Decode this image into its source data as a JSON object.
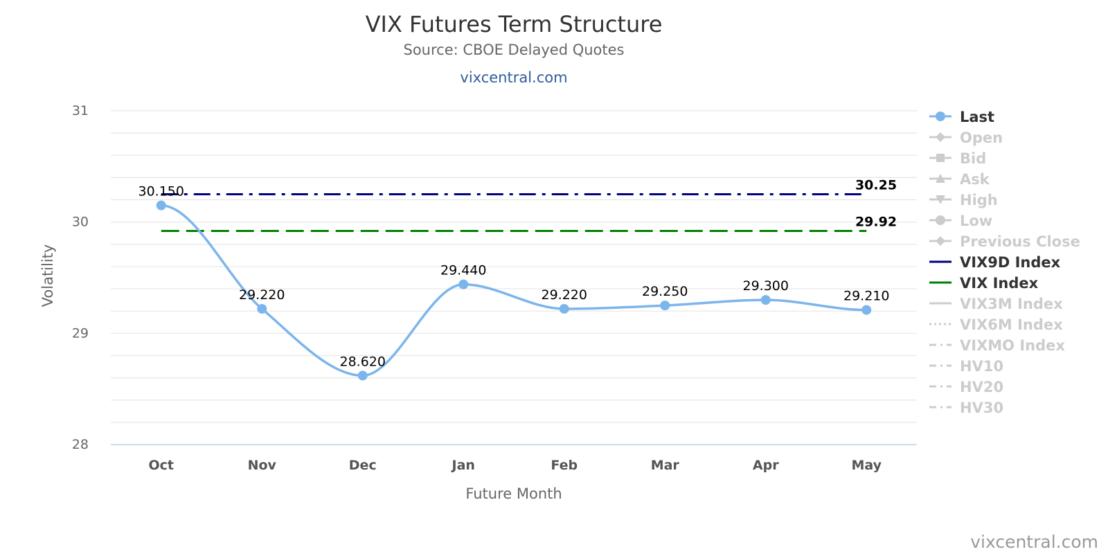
{
  "chart_data": {
    "type": "line",
    "title": "VIX Futures Term Structure",
    "subtitle": "Source: CBOE Delayed Quotes",
    "link_text": "vixcentral.com",
    "credit": "vixcentral.com",
    "xlabel": "Future Month",
    "ylabel": "Volatility",
    "ylim": [
      28,
      31
    ],
    "y_ticks": [
      28,
      29,
      30,
      31
    ],
    "y_minor_step": 0.2,
    "grid": true,
    "legend_position": "right",
    "categories": [
      "Oct",
      "Nov",
      "Dec",
      "Jan",
      "Feb",
      "Mar",
      "Apr",
      "May"
    ],
    "series": [
      {
        "name": "Last",
        "values": [
          30.15,
          29.22,
          28.62,
          29.44,
          29.22,
          29.25,
          29.3,
          29.21
        ],
        "labels": [
          "30.150",
          "29.220",
          "28.620",
          "29.440",
          "29.220",
          "29.250",
          "29.300",
          "29.210"
        ],
        "color": "#7cb5ec",
        "style": "smooth-line-with-markers"
      }
    ],
    "reference_lines": [
      {
        "name": "VIX9D Index",
        "value": 30.25,
        "label": "30.25",
        "color": "#000080",
        "style": "dash-dot"
      },
      {
        "name": "VIX Index",
        "value": 29.92,
        "label": "29.92",
        "color": "#008000",
        "style": "dash"
      }
    ],
    "legend": [
      {
        "name": "Last",
        "active": true,
        "color": "#7cb5ec",
        "symbol": "circle",
        "line": "solid"
      },
      {
        "name": "Open",
        "active": false,
        "color": "#cccccc",
        "symbol": "diamond",
        "line": "solid"
      },
      {
        "name": "Bid",
        "active": false,
        "color": "#cccccc",
        "symbol": "square",
        "line": "solid"
      },
      {
        "name": "Ask",
        "active": false,
        "color": "#cccccc",
        "symbol": "triangle",
        "line": "solid"
      },
      {
        "name": "High",
        "active": false,
        "color": "#cccccc",
        "symbol": "triangle-down",
        "line": "solid"
      },
      {
        "name": "Low",
        "active": false,
        "color": "#cccccc",
        "symbol": "circle",
        "line": "solid"
      },
      {
        "name": "Previous Close",
        "active": false,
        "color": "#cccccc",
        "symbol": "diamond",
        "line": "solid"
      },
      {
        "name": "VIX9D Index",
        "active": true,
        "color": "#000080",
        "symbol": "none",
        "line": "solid"
      },
      {
        "name": "VIX Index",
        "active": true,
        "color": "#008000",
        "symbol": "none",
        "line": "solid"
      },
      {
        "name": "VIX3M Index",
        "active": false,
        "color": "#cccccc",
        "symbol": "none",
        "line": "solid"
      },
      {
        "name": "VIX6M Index",
        "active": false,
        "color": "#cccccc",
        "symbol": "none",
        "line": "dot"
      },
      {
        "name": "VIXMO Index",
        "active": false,
        "color": "#cccccc",
        "symbol": "none",
        "line": "dash-dot"
      },
      {
        "name": "HV10",
        "active": false,
        "color": "#cccccc",
        "symbol": "none",
        "line": "dash-dot"
      },
      {
        "name": "HV20",
        "active": false,
        "color": "#cccccc",
        "symbol": "none",
        "line": "dash-dot"
      },
      {
        "name": "HV30",
        "active": false,
        "color": "#cccccc",
        "symbol": "none",
        "line": "dash-dot"
      }
    ]
  }
}
